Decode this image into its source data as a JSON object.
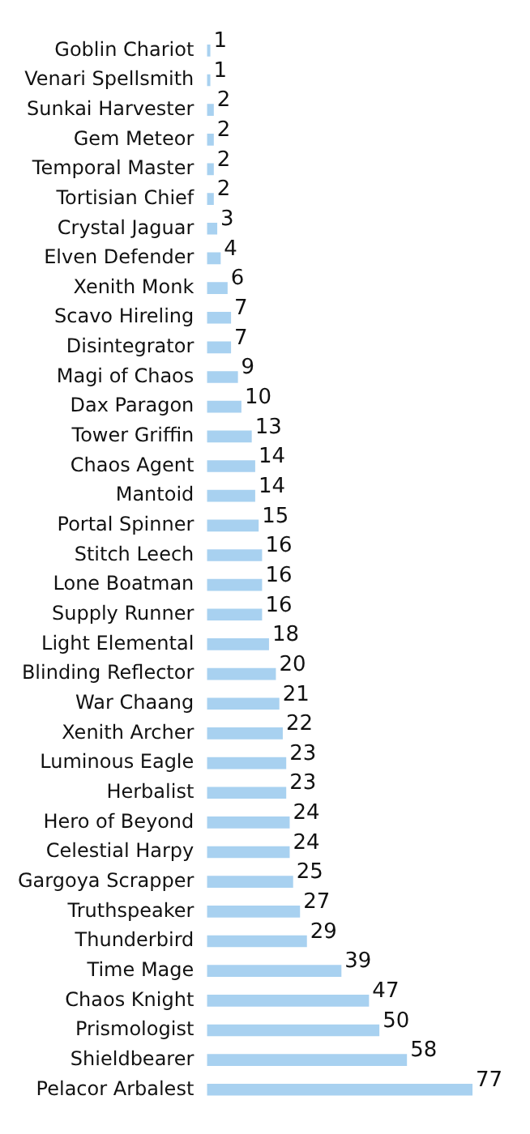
{
  "chart_data": {
    "type": "bar",
    "orientation": "horizontal",
    "data_labels": true,
    "legend": false,
    "categories": [
      "Goblin Chariot",
      "Venari Spellsmith",
      "Sunkai Harvester",
      "Gem Meteor",
      "Temporal Master",
      "Tortisian Chief",
      "Crystal Jaguar",
      "Elven Defender",
      "Xenith Monk",
      "Scavo Hireling",
      "Disintegrator",
      "Magi of Chaos",
      "Dax Paragon",
      "Tower Griffin",
      "Chaos Agent",
      "Mantoid",
      "Portal Spinner",
      "Stitch Leech",
      "Lone Boatman",
      "Supply Runner",
      "Light Elemental",
      "Blinding Reflector",
      "War Chaang",
      "Xenith Archer",
      "Luminous Eagle",
      "Herbalist",
      "Hero of Beyond",
      "Celestial Harpy",
      "Gargoya Scrapper",
      "Truthspeaker",
      "Thunderbird",
      "Time Mage",
      "Chaos Knight",
      "Prismologist",
      "Shieldbearer",
      "Pelacor Arbalest"
    ],
    "values": [
      1,
      1,
      2,
      2,
      2,
      2,
      3,
      4,
      6,
      7,
      7,
      9,
      10,
      13,
      14,
      14,
      15,
      16,
      16,
      16,
      18,
      20,
      21,
      22,
      23,
      23,
      24,
      24,
      25,
      27,
      29,
      39,
      47,
      50,
      58,
      77
    ],
    "color": "#a8d1f0"
  }
}
